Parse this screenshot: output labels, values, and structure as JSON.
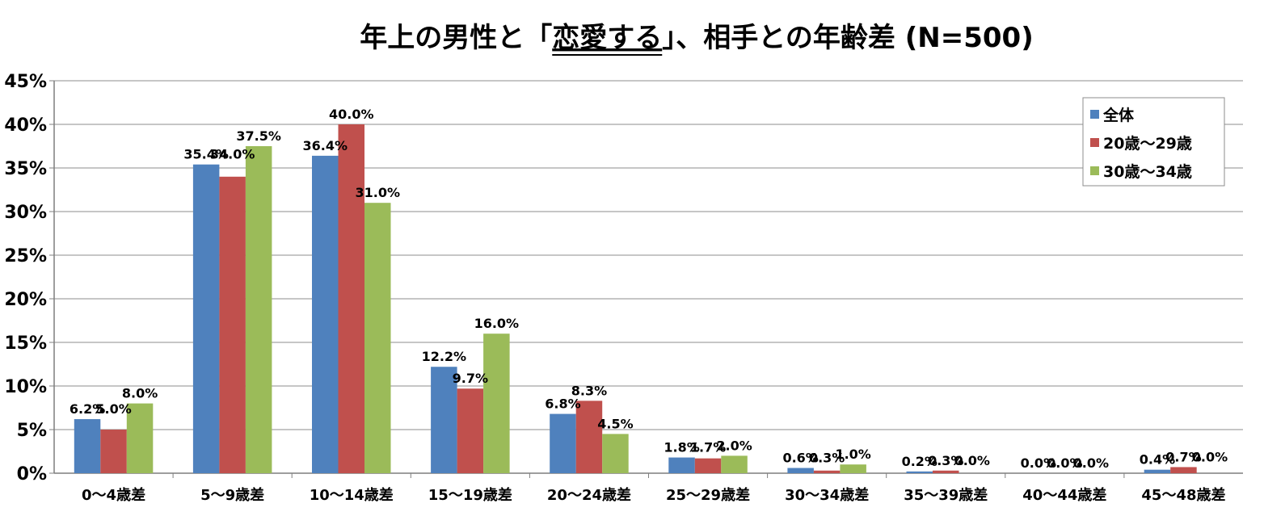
{
  "chart_data": {
    "type": "bar",
    "title": "年上の男性と「恋愛する」、相手との年齢差 (N=500)",
    "title_parts": {
      "before": "年上の男性と「",
      "underlined": "恋愛する",
      "after": "」、相手との年齢差 (N=500)"
    },
    "xlabel": "",
    "ylabel": "",
    "ylim": [
      0,
      45
    ],
    "ytick_step": 5,
    "yticks": [
      "0%",
      "5%",
      "10%",
      "15%",
      "20%",
      "25%",
      "30%",
      "35%",
      "40%",
      "45%"
    ],
    "grid": true,
    "legend_position": "top-right",
    "categories": [
      "0～4歳差",
      "5～9歳差",
      "10～14歳差",
      "15～19歳差",
      "20～24歳差",
      "25～29歳差",
      "30～34歳差",
      "35～39歳差",
      "40～44歳差",
      "45～48歳差"
    ],
    "series": [
      {
        "name": "全体",
        "color": "#4F81BD",
        "values": [
          6.2,
          35.4,
          36.4,
          12.2,
          6.8,
          1.8,
          0.6,
          0.2,
          0.0,
          0.4
        ],
        "labels": [
          "6.2%",
          "35.4%",
          "36.4%",
          "12.2%",
          "6.8%",
          "1.8%",
          "0.6%",
          "0.2%",
          "0.0%",
          "0.4%"
        ]
      },
      {
        "name": "20歳～29歳",
        "color": "#C0504D",
        "values": [
          5.0,
          34.0,
          40.0,
          9.7,
          8.3,
          1.7,
          0.3,
          0.3,
          0.0,
          0.7
        ],
        "labels": [
          "5.0%",
          "34.0%",
          "40.0%",
          "9.7%",
          "8.3%",
          "1.7%",
          "0.3%",
          "0.3%",
          "0.0%",
          "0.7%"
        ]
      },
      {
        "name": "30歳～34歳",
        "color": "#9BBB59",
        "values": [
          8.0,
          37.5,
          31.0,
          16.0,
          4.5,
          2.0,
          1.0,
          0.0,
          0.0,
          0.0
        ],
        "labels": [
          "8.0%",
          "37.5%",
          "31.0%",
          "16.0%",
          "4.5%",
          "2.0%",
          "1.0%",
          "0.0%",
          "0.0%",
          "0.0%"
        ]
      }
    ]
  }
}
